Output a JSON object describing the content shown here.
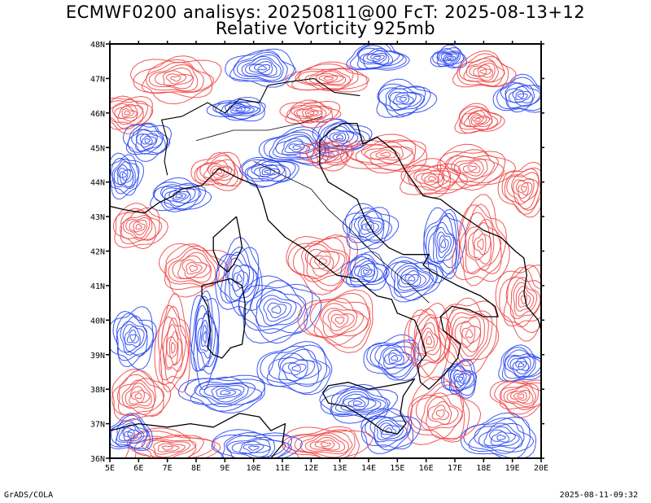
{
  "header": {
    "title_line1": "ECMWF0200 analisys: 20250811@00 FcT: 2025-08-13+12",
    "title_line2": "Relative Vorticity 925mb"
  },
  "map": {
    "variable": "Relative Vorticity",
    "level": "925mb",
    "lon_range": [
      5,
      20
    ],
    "lat_range": [
      36,
      48
    ],
    "lon_labels": [
      "5E",
      "6E",
      "7E",
      "8E",
      "9E",
      "10E",
      "11E",
      "12E",
      "13E",
      "14E",
      "15E",
      "16E",
      "17E",
      "18E",
      "19E",
      "20E"
    ],
    "lat_labels": [
      "36N",
      "37N",
      "38N",
      "39N",
      "40N",
      "41N",
      "42N",
      "43N",
      "44N",
      "45N",
      "46N",
      "47N",
      "48N"
    ],
    "colors": {
      "positive_contours": "#f04646",
      "negative_contours": "#2846f0",
      "coastlines": "#000000",
      "zero_contour": "#c8c8c8"
    }
  },
  "footer": {
    "left": "GrADS/COLA",
    "right": "2025-08-11-09:32"
  }
}
